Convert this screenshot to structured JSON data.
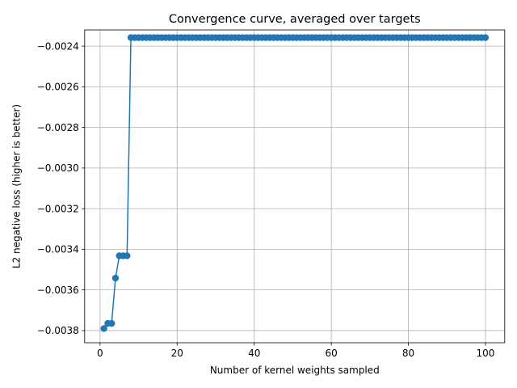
{
  "chart_data": {
    "type": "line",
    "title": "Convergence curve, averaged over targets",
    "xlabel": "Number of kernel weights sampled",
    "ylabel": "L2 negative loss (higher is better)",
    "xlim": [
      -4.0,
      105.0
    ],
    "ylim": [
      -0.00386,
      -0.00232
    ],
    "xticks": [
      0,
      20,
      40,
      60,
      80,
      100
    ],
    "xtick_labels": [
      "0",
      "20",
      "40",
      "60",
      "80",
      "100"
    ],
    "yticks": [
      -0.0038,
      -0.0036,
      -0.0034,
      -0.0032,
      -0.003,
      -0.0028,
      -0.0026,
      -0.0024
    ],
    "ytick_labels": [
      "−0.0038",
      "−0.0036",
      "−0.0034",
      "−0.0032",
      "−0.0030",
      "−0.0028",
      "−0.0026",
      "−0.0024"
    ],
    "grid": true,
    "color": "#1f77b4",
    "marker": "circle",
    "series": [
      {
        "x": [
          1,
          2,
          3,
          4,
          5,
          6,
          7,
          8,
          9,
          10,
          11,
          12,
          13,
          14,
          15,
          16,
          17,
          18,
          19,
          20,
          21,
          22,
          23,
          24,
          25,
          26,
          27,
          28,
          29,
          30,
          31,
          32,
          33,
          34,
          35,
          36,
          37,
          38,
          39,
          40,
          41,
          42,
          43,
          44,
          45,
          46,
          47,
          48,
          49,
          50,
          51,
          52,
          53,
          54,
          55,
          56,
          57,
          58,
          59,
          60,
          61,
          62,
          63,
          64,
          65,
          66,
          67,
          68,
          69,
          70,
          71,
          72,
          73,
          74,
          75,
          76,
          77,
          78,
          79,
          80,
          81,
          82,
          83,
          84,
          85,
          86,
          87,
          88,
          89,
          90,
          91,
          92,
          93,
          94,
          95,
          96,
          97,
          98,
          99,
          100
        ],
        "y": [
          -0.00379,
          -0.003765,
          -0.003765,
          -0.003542,
          -0.003432,
          -0.003432,
          -0.003432,
          -0.002358,
          -0.002358,
          -0.002358,
          -0.002358,
          -0.002358,
          -0.002358,
          -0.002358,
          -0.002358,
          -0.002358,
          -0.002358,
          -0.002358,
          -0.002358,
          -0.002358,
          -0.002358,
          -0.002358,
          -0.002358,
          -0.002358,
          -0.002358,
          -0.002358,
          -0.002358,
          -0.002358,
          -0.002358,
          -0.002358,
          -0.002358,
          -0.002358,
          -0.002358,
          -0.002358,
          -0.002358,
          -0.002358,
          -0.002358,
          -0.002358,
          -0.002358,
          -0.002358,
          -0.002358,
          -0.002358,
          -0.002358,
          -0.002358,
          -0.002358,
          -0.002358,
          -0.002358,
          -0.002358,
          -0.002358,
          -0.002358,
          -0.002358,
          -0.002358,
          -0.002358,
          -0.002358,
          -0.002358,
          -0.002358,
          -0.002358,
          -0.002358,
          -0.002358,
          -0.002358,
          -0.002358,
          -0.002358,
          -0.002358,
          -0.002358,
          -0.002358,
          -0.002358,
          -0.002358,
          -0.002358,
          -0.002358,
          -0.002358,
          -0.002358,
          -0.002358,
          -0.002358,
          -0.002358,
          -0.002358,
          -0.002358,
          -0.002358,
          -0.002358,
          -0.002358,
          -0.002358,
          -0.002358,
          -0.002358,
          -0.002358,
          -0.002358,
          -0.002358,
          -0.002358,
          -0.002358,
          -0.002358,
          -0.002358,
          -0.002358,
          -0.002358,
          -0.002358,
          -0.002358,
          -0.002358,
          -0.002358,
          -0.002358,
          -0.002358,
          -0.002358,
          -0.002358,
          -0.002358
        ]
      }
    ]
  }
}
